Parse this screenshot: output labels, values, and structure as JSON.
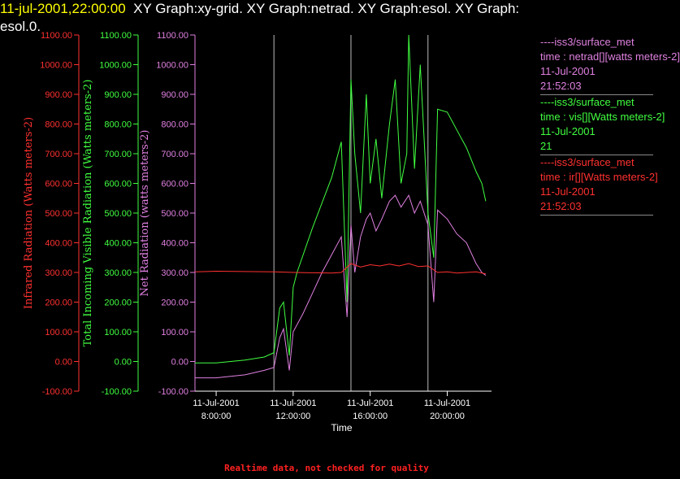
{
  "header": {
    "timestamp": "11-jul-2001,22:00:00",
    "line1": "XY Graph:xy-grid.  XY Graph:netrad.  XY Graph:esol.  XY Graph:",
    "line2": "esol.0."
  },
  "legend": [
    {
      "source": "----iss3/surface_met",
      "var": "time : netrad[][watts meters-2]",
      "date": "11-Jul-2001",
      "time": "21:52:03",
      "color": "#e080e0"
    },
    {
      "source": "----iss3/surface_met",
      "var": "time : vis[][Watts meters-2]",
      "date": "11-Jul-2001",
      "time": "21",
      "color": "#40ff40"
    },
    {
      "source": "----iss3/surface_met",
      "var": "time : ir[][Watts meters-2]",
      "date": "11-Jul-2001",
      "time": "21:52:03",
      "color": "#ff3030"
    }
  ],
  "footer": "Realtime data, not checked for quality",
  "chart_data": {
    "type": "line",
    "xlabel": "Time",
    "x_range_hours": [
      6.9,
      22.3
    ],
    "x_ticks": [
      {
        "hour": 8,
        "date": "11-Jul-2001",
        "time": "8:00:00"
      },
      {
        "hour": 12,
        "date": "11-Jul-2001",
        "time": "12:00:00"
      },
      {
        "hour": 16,
        "date": "11-Jul-2001",
        "time": "16:00:00"
      },
      {
        "hour": 20,
        "date": "11-Jul-2001",
        "time": "20:00:00"
      }
    ],
    "grid_x_hours": [
      11,
      15,
      19
    ],
    "y_axes": [
      {
        "id": "ir",
        "label": "Infrared Radiation (Watts meters-2)",
        "color": "#ff3030",
        "ylim": [
          -100,
          1100
        ]
      },
      {
        "id": "vis",
        "label": "Total Incoming Visible Radiation (Watts meters-2)",
        "color": "#40ff40",
        "ylim": [
          -100,
          1100
        ]
      },
      {
        "id": "net",
        "label": "Net Radiation (watts meters-2)",
        "color": "#e080e0",
        "ylim": [
          -100,
          1100
        ]
      }
    ],
    "y_ticks": [
      "-100.00",
      "0.00",
      "100.00",
      "200.00",
      "300.00",
      "400.00",
      "500.00",
      "600.00",
      "700.00",
      "800.00",
      "900.00",
      "1000.00",
      "1100.00"
    ],
    "series": [
      {
        "axis": "vis",
        "color": "#40ff40",
        "x": [
          6.9,
          8.0,
          9.5,
          10.5,
          11.0,
          11.3,
          11.5,
          11.8,
          12.0,
          12.2,
          13.0,
          14.0,
          14.5,
          14.8,
          15.0,
          15.2,
          15.5,
          15.8,
          16.0,
          16.3,
          16.6,
          17.0,
          17.3,
          17.6,
          17.9,
          18.0,
          18.3,
          18.6,
          19.0,
          19.3,
          19.5,
          20.0,
          20.5,
          21.0,
          21.5,
          21.8,
          22.0
        ],
        "y": [
          -5,
          -5,
          5,
          15,
          30,
          180,
          200,
          20,
          250,
          300,
          450,
          620,
          740,
          200,
          950,
          700,
          500,
          900,
          600,
          750,
          550,
          800,
          950,
          600,
          700,
          1100,
          650,
          1000,
          500,
          350,
          850,
          840,
          780,
          720,
          640,
          600,
          540
        ]
      },
      {
        "axis": "net",
        "color": "#e080e0",
        "x": [
          6.9,
          8.0,
          9.5,
          10.5,
          11.0,
          11.3,
          11.5,
          11.8,
          12.0,
          12.5,
          13.0,
          13.5,
          14.0,
          14.5,
          14.8,
          15.0,
          15.2,
          15.5,
          15.8,
          16.0,
          16.3,
          16.6,
          17.0,
          17.3,
          17.6,
          18.0,
          18.3,
          18.6,
          19.0,
          19.3,
          19.5,
          20.0,
          20.5,
          21.0,
          21.5,
          21.8,
          22.0
        ],
        "y": [
          -55,
          -55,
          -45,
          -30,
          -20,
          80,
          110,
          -30,
          100,
          160,
          230,
          300,
          360,
          420,
          150,
          460,
          300,
          420,
          480,
          500,
          440,
          480,
          540,
          560,
          520,
          560,
          500,
          540,
          460,
          200,
          510,
          480,
          430,
          400,
          330,
          300,
          290
        ]
      },
      {
        "axis": "ir",
        "color": "#ff3030",
        "x": [
          6.9,
          8.0,
          9.5,
          11.0,
          12.0,
          13.0,
          14.0,
          14.5,
          15.0,
          15.5,
          16.0,
          16.5,
          17.0,
          17.5,
          18.0,
          18.5,
          19.0,
          19.5,
          20.0,
          20.5,
          21.0,
          21.5,
          22.0
        ],
        "y": [
          302,
          304,
          303,
          302,
          300,
          299,
          298,
          300,
          330,
          318,
          326,
          322,
          328,
          322,
          330,
          320,
          322,
          300,
          302,
          298,
          300,
          302,
          295
        ]
      }
    ]
  }
}
